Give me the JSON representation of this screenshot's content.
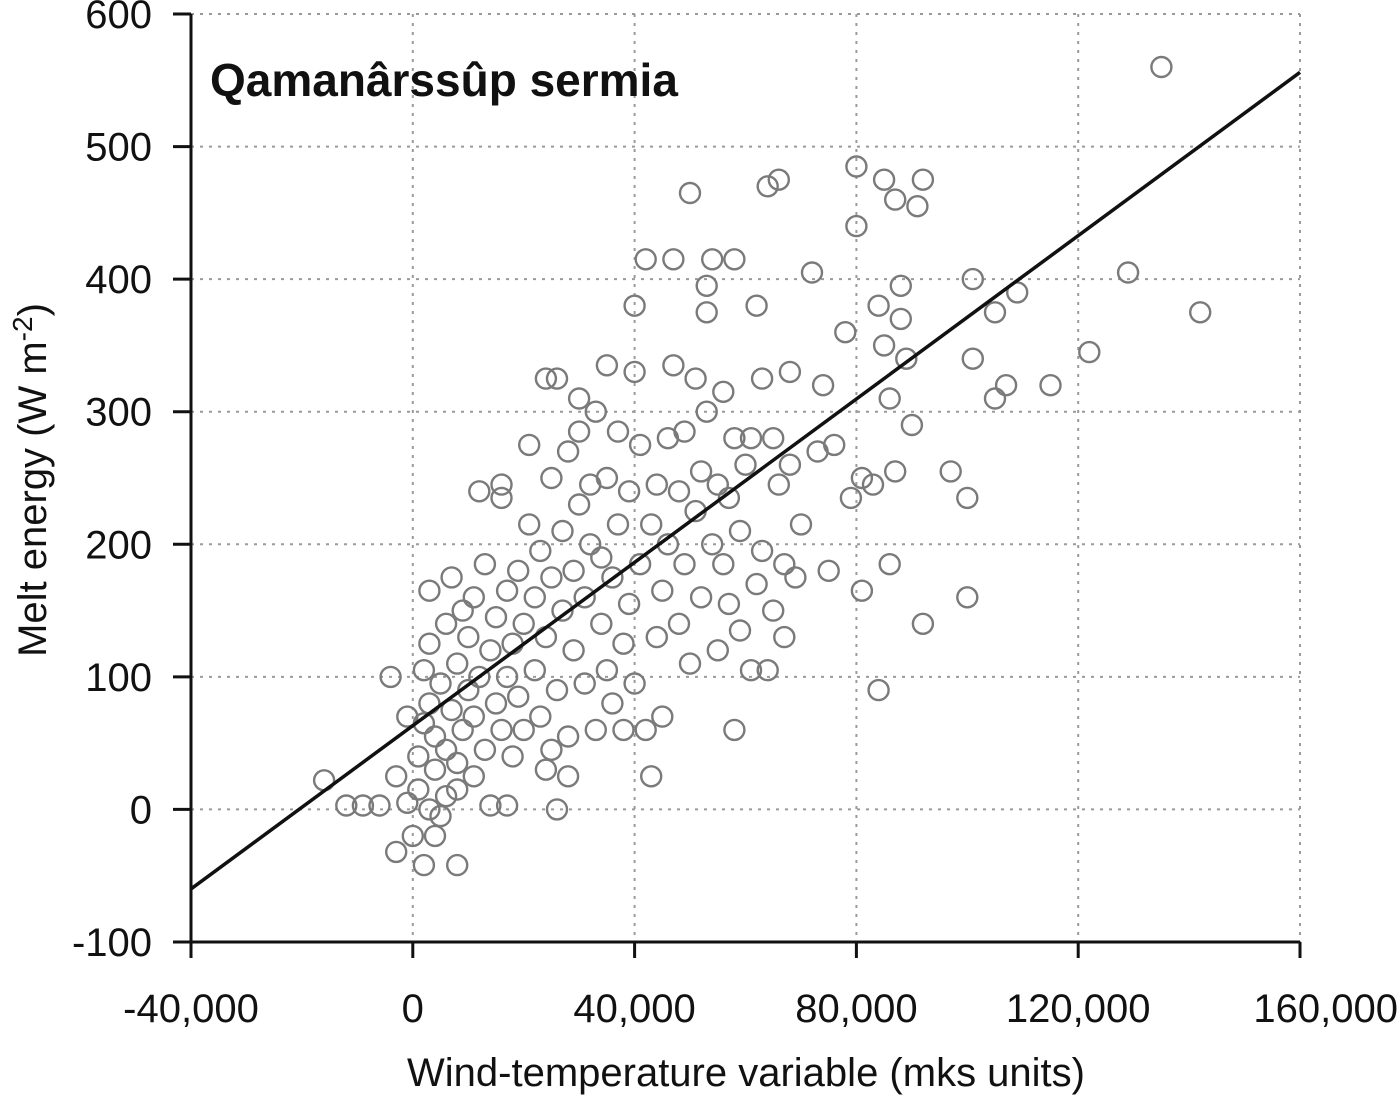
{
  "chart_data": {
    "type": "scatter",
    "title": "Qamanârssûp sermia",
    "xlabel": "Wind-temperature variable (mks units)",
    "ylabel": "Melt energy (W m",
    "ylabel_sup": "-2",
    "ylabel_close": ")",
    "xlim": [
      -40000,
      160000
    ],
    "ylim": [
      -100,
      600
    ],
    "x_ticks": [
      -40000,
      0,
      40000,
      80000,
      120000,
      160000
    ],
    "x_tick_labels": [
      "-40,000",
      "0",
      "40,000",
      "80,000",
      "120,000",
      "160,000"
    ],
    "y_ticks": [
      -100,
      0,
      100,
      200,
      300,
      400,
      500,
      600
    ],
    "y_tick_labels": [
      "-100",
      "0",
      "100",
      "200",
      "300",
      "400",
      "500",
      "600"
    ],
    "grid": true,
    "marker": "open-circle",
    "fit_line": {
      "x": [
        -40000,
        160000
      ],
      "y": [
        -60,
        556
      ]
    },
    "points": [
      [
        -16000,
        22
      ],
      [
        -12000,
        3
      ],
      [
        -9000,
        3
      ],
      [
        -6000,
        3
      ],
      [
        -4000,
        100
      ],
      [
        -3000,
        -32
      ],
      [
        -3000,
        25
      ],
      [
        -1000,
        70
      ],
      [
        -1000,
        5
      ],
      [
        0,
        -20
      ],
      [
        1000,
        40
      ],
      [
        1000,
        15
      ],
      [
        2000,
        -42
      ],
      [
        2000,
        65
      ],
      [
        2000,
        105
      ],
      [
        3000,
        0
      ],
      [
        3000,
        80
      ],
      [
        3000,
        125
      ],
      [
        3000,
        165
      ],
      [
        4000,
        -20
      ],
      [
        4000,
        30
      ],
      [
        4000,
        55
      ],
      [
        5000,
        95
      ],
      [
        5000,
        -5
      ],
      [
        6000,
        10
      ],
      [
        6000,
        45
      ],
      [
        6000,
        140
      ],
      [
        7000,
        75
      ],
      [
        7000,
        175
      ],
      [
        8000,
        -42
      ],
      [
        8000,
        35
      ],
      [
        8000,
        15
      ],
      [
        8000,
        110
      ],
      [
        9000,
        60
      ],
      [
        9000,
        150
      ],
      [
        10000,
        90
      ],
      [
        10000,
        130
      ],
      [
        11000,
        25
      ],
      [
        11000,
        70
      ],
      [
        11000,
        160
      ],
      [
        12000,
        100
      ],
      [
        12000,
        240
      ],
      [
        13000,
        185
      ],
      [
        13000,
        45
      ],
      [
        14000,
        120
      ],
      [
        14000,
        3
      ],
      [
        15000,
        80
      ],
      [
        15000,
        145
      ],
      [
        16000,
        60
      ],
      [
        16000,
        235
      ],
      [
        16000,
        245
      ],
      [
        17000,
        100
      ],
      [
        17000,
        165
      ],
      [
        17000,
        3
      ],
      [
        18000,
        40
      ],
      [
        18000,
        125
      ],
      [
        19000,
        85
      ],
      [
        19000,
        180
      ],
      [
        20000,
        140
      ],
      [
        20000,
        60
      ],
      [
        21000,
        215
      ],
      [
        21000,
        275
      ],
      [
        22000,
        105
      ],
      [
        22000,
        160
      ],
      [
        23000,
        70
      ],
      [
        23000,
        195
      ],
      [
        24000,
        30
      ],
      [
        24000,
        130
      ],
      [
        24000,
        325
      ],
      [
        25000,
        45
      ],
      [
        25000,
        250
      ],
      [
        25000,
        175
      ],
      [
        26000,
        90
      ],
      [
        26000,
        325
      ],
      [
        26000,
        0
      ],
      [
        27000,
        210
      ],
      [
        27000,
        150
      ],
      [
        28000,
        270
      ],
      [
        28000,
        55
      ],
      [
        28000,
        25
      ],
      [
        29000,
        180
      ],
      [
        29000,
        120
      ],
      [
        30000,
        230
      ],
      [
        30000,
        285
      ],
      [
        30000,
        310
      ],
      [
        31000,
        95
      ],
      [
        31000,
        160
      ],
      [
        32000,
        200
      ],
      [
        32000,
        245
      ],
      [
        33000,
        300
      ],
      [
        33000,
        60
      ],
      [
        34000,
        140
      ],
      [
        34000,
        190
      ],
      [
        35000,
        105
      ],
      [
        35000,
        335
      ],
      [
        35000,
        250
      ],
      [
        36000,
        175
      ],
      [
        36000,
        80
      ],
      [
        37000,
        215
      ],
      [
        37000,
        285
      ],
      [
        38000,
        125
      ],
      [
        38000,
        60
      ],
      [
        39000,
        155
      ],
      [
        39000,
        240
      ],
      [
        40000,
        95
      ],
      [
        40000,
        330
      ],
      [
        40000,
        380
      ],
      [
        41000,
        185
      ],
      [
        41000,
        275
      ],
      [
        42000,
        60
      ],
      [
        42000,
        415
      ],
      [
        43000,
        215
      ],
      [
        43000,
        25
      ],
      [
        44000,
        130
      ],
      [
        44000,
        245
      ],
      [
        45000,
        165
      ],
      [
        45000,
        70
      ],
      [
        46000,
        200
      ],
      [
        46000,
        280
      ],
      [
        47000,
        335
      ],
      [
        47000,
        415
      ],
      [
        48000,
        140
      ],
      [
        48000,
        240
      ],
      [
        49000,
        185
      ],
      [
        49000,
        285
      ],
      [
        50000,
        110
      ],
      [
        50000,
        465
      ],
      [
        51000,
        225
      ],
      [
        51000,
        325
      ],
      [
        52000,
        160
      ],
      [
        52000,
        255
      ],
      [
        53000,
        300
      ],
      [
        53000,
        375
      ],
      [
        53000,
        395
      ],
      [
        54000,
        200
      ],
      [
        54000,
        415
      ],
      [
        55000,
        120
      ],
      [
        55000,
        245
      ],
      [
        56000,
        185
      ],
      [
        56000,
        315
      ],
      [
        57000,
        155
      ],
      [
        57000,
        235
      ],
      [
        58000,
        60
      ],
      [
        58000,
        280
      ],
      [
        58000,
        415
      ],
      [
        59000,
        135
      ],
      [
        59000,
        210
      ],
      [
        60000,
        260
      ],
      [
        61000,
        105
      ],
      [
        61000,
        280
      ],
      [
        62000,
        170
      ],
      [
        62000,
        380
      ],
      [
        63000,
        325
      ],
      [
        63000,
        195
      ],
      [
        64000,
        470
      ],
      [
        64000,
        105
      ],
      [
        65000,
        150
      ],
      [
        65000,
        280
      ],
      [
        66000,
        475
      ],
      [
        66000,
        245
      ],
      [
        67000,
        130
      ],
      [
        67000,
        185
      ],
      [
        68000,
        330
      ],
      [
        68000,
        260
      ],
      [
        69000,
        175
      ],
      [
        70000,
        215
      ],
      [
        72000,
        405
      ],
      [
        73000,
        270
      ],
      [
        74000,
        320
      ],
      [
        75000,
        180
      ],
      [
        76000,
        275
      ],
      [
        78000,
        360
      ],
      [
        79000,
        235
      ],
      [
        80000,
        485
      ],
      [
        80000,
        440
      ],
      [
        81000,
        250
      ],
      [
        81000,
        165
      ],
      [
        83000,
        245
      ],
      [
        84000,
        380
      ],
      [
        84000,
        90
      ],
      [
        85000,
        475
      ],
      [
        85000,
        350
      ],
      [
        86000,
        310
      ],
      [
        86000,
        185
      ],
      [
        87000,
        255
      ],
      [
        87000,
        460
      ],
      [
        88000,
        395
      ],
      [
        88000,
        370
      ],
      [
        89000,
        340
      ],
      [
        90000,
        290
      ],
      [
        91000,
        455
      ],
      [
        92000,
        475
      ],
      [
        92000,
        140
      ],
      [
        97000,
        255
      ],
      [
        100000,
        160
      ],
      [
        100000,
        235
      ],
      [
        101000,
        340
      ],
      [
        101000,
        400
      ],
      [
        105000,
        310
      ],
      [
        105000,
        375
      ],
      [
        107000,
        320
      ],
      [
        109000,
        390
      ],
      [
        115000,
        320
      ],
      [
        122000,
        345
      ],
      [
        129000,
        405
      ],
      [
        135000,
        560
      ],
      [
        142000,
        375
      ]
    ]
  }
}
